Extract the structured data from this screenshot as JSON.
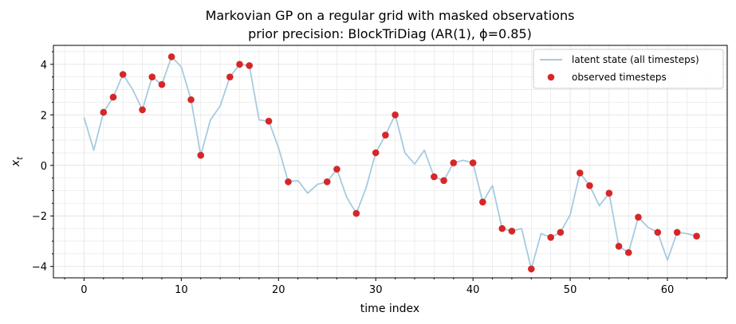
{
  "chart_data": {
    "type": "line",
    "title": "Markovian GP on a regular grid with masked observations",
    "subtitle": "prior precision: BlockTriDiag (AR(1), ϕ=0.85)",
    "xlabel": "time index",
    "ylabel": "x",
    "ylabel_subscript": "t",
    "xlim": [
      -3.15,
      66.15
    ],
    "ylim": [
      -4.45,
      4.75
    ],
    "xticks": [
      0,
      10,
      20,
      30,
      40,
      50,
      60
    ],
    "yticks": [
      -4,
      -2,
      0,
      2,
      4
    ],
    "xtick_labels": [
      "0",
      "10",
      "20",
      "30",
      "40",
      "50",
      "60"
    ],
    "ytick_labels": [
      "−4",
      "−2",
      "0",
      "2",
      "4"
    ],
    "grid": true,
    "legend_position": "top-right",
    "colors": {
      "latent": "#a6cbe0",
      "observed": "#d62728",
      "grid": "#e4e4e4"
    },
    "series": [
      {
        "name": "latent state (all timesteps)",
        "kind": "line",
        "x": [
          0,
          1,
          2,
          3,
          4,
          5,
          6,
          7,
          8,
          9,
          10,
          11,
          12,
          13,
          14,
          15,
          16,
          17,
          18,
          19,
          20,
          21,
          22,
          23,
          24,
          25,
          26,
          27,
          28,
          29,
          30,
          31,
          32,
          33,
          34,
          35,
          36,
          37,
          38,
          39,
          40,
          41,
          42,
          43,
          44,
          45,
          46,
          47,
          48,
          49,
          50,
          51,
          52,
          53,
          54,
          55,
          56,
          57,
          58,
          59,
          60,
          61,
          62,
          63
        ],
        "y": [
          1.9,
          0.6,
          2.1,
          2.7,
          3.6,
          3.0,
          2.2,
          3.5,
          3.2,
          4.3,
          3.9,
          2.6,
          0.4,
          1.8,
          2.35,
          3.5,
          4.0,
          3.95,
          1.8,
          1.75,
          0.7,
          -0.65,
          -0.6,
          -1.1,
          -0.75,
          -0.65,
          -0.15,
          -1.25,
          -1.9,
          -0.9,
          0.5,
          1.2,
          2.0,
          0.5,
          0.05,
          0.6,
          -0.45,
          -0.6,
          0.1,
          0.2,
          0.1,
          -1.45,
          -0.8,
          -2.5,
          -2.6,
          -2.5,
          -4.1,
          -2.7,
          -2.85,
          -2.65,
          -1.95,
          -0.3,
          -0.8,
          -1.6,
          -1.1,
          -3.2,
          -3.45,
          -2.05,
          -2.45,
          -2.65,
          -3.75,
          -2.65,
          -2.7,
          -2.8
        ]
      },
      {
        "name": "observed timesteps",
        "kind": "scatter",
        "x": [
          2,
          3,
          4,
          6,
          7,
          8,
          9,
          11,
          12,
          15,
          16,
          17,
          19,
          21,
          25,
          26,
          28,
          30,
          31,
          32,
          36,
          37,
          38,
          40,
          41,
          43,
          44,
          46,
          48,
          49,
          51,
          52,
          54,
          55,
          56,
          57,
          59,
          61,
          63
        ],
        "y": [
          2.1,
          2.7,
          3.6,
          2.2,
          3.5,
          3.2,
          4.3,
          2.6,
          0.4,
          3.5,
          4.0,
          3.95,
          1.75,
          -0.65,
          -0.65,
          -0.15,
          -1.9,
          0.5,
          1.2,
          2.0,
          -0.45,
          -0.6,
          0.1,
          0.1,
          -1.45,
          -2.5,
          -2.6,
          -4.1,
          -2.85,
          -2.65,
          -0.3,
          -0.8,
          -1.1,
          -3.2,
          -3.45,
          -2.05,
          -2.65,
          -2.65,
          -2.8
        ]
      }
    ]
  }
}
